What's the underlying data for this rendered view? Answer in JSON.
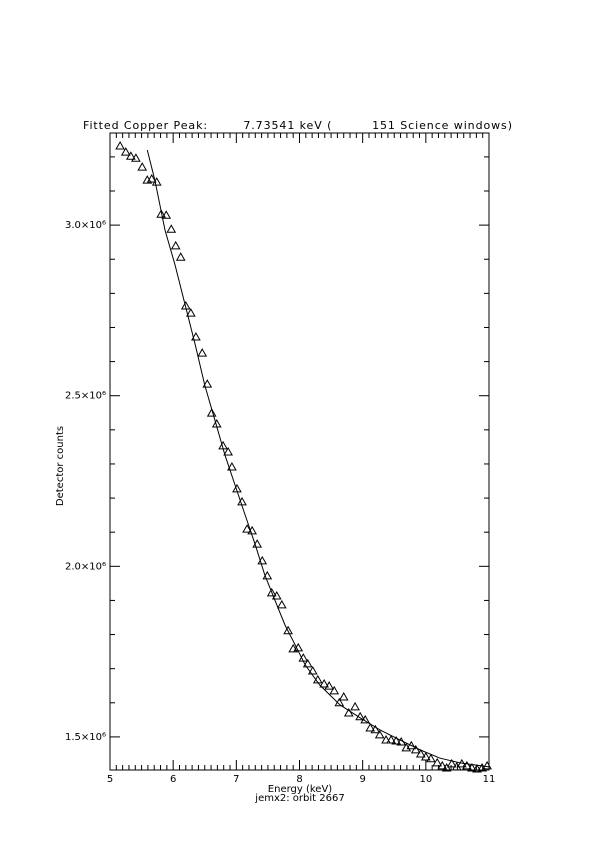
{
  "chart_data": {
    "type": "scatter",
    "title": "Fitted Copper Peak:        7.73541 keV (         151 Science windows)",
    "x_label": "Energy (keV)",
    "subtitle": "jemx2: orbit 2667",
    "y_label": "Detector counts",
    "xlim": [
      5,
      11
    ],
    "xticks": [
      5,
      6,
      7,
      8,
      9,
      10,
      11
    ],
    "ylim": [
      1403000,
      3270000
    ],
    "yticks": [
      {
        "value": 1500000,
        "label": "1.5×10⁶"
      },
      {
        "value": 2000000,
        "label": "2.0×10⁶"
      },
      {
        "value": 2500000,
        "label": "2.5×10⁶"
      },
      {
        "value": 3000000,
        "label": "3.0×10⁶"
      }
    ],
    "x_minor_ticks": 10,
    "y_minor_ticks": 5,
    "series": [
      {
        "marker": "triangle",
        "color": "#000000",
        "x": [
          5.16,
          5.25,
          5.33,
          5.41,
          5.51,
          5.59,
          5.66,
          5.74,
          5.81,
          5.89,
          5.97,
          6.04,
          6.12,
          6.2,
          6.28,
          6.36,
          6.46,
          6.54,
          6.61,
          6.69,
          6.79,
          6.87,
          6.93,
          7.01,
          7.09,
          7.17,
          7.25,
          7.33,
          7.41,
          7.49,
          7.56,
          7.64,
          7.72,
          7.82,
          7.9,
          7.98,
          8.06,
          8.13,
          8.21,
          8.29,
          8.39,
          8.47,
          8.55,
          8.63,
          8.7,
          8.78,
          8.88,
          8.96,
          9.04,
          9.12,
          9.2,
          9.27,
          9.37,
          9.45,
          9.53,
          9.61,
          9.69,
          9.77,
          9.84,
          9.92,
          10.0,
          10.08,
          10.18,
          10.26,
          10.33,
          10.41,
          10.49,
          10.57,
          10.65,
          10.73,
          10.81,
          10.89,
          10.97
        ],
        "values": [
          3232000,
          3214000,
          3202000,
          3196000,
          3170000,
          3132000,
          3135000,
          3126000,
          3032000,
          3029000,
          2988000,
          2939000,
          2906000,
          2763000,
          2742000,
          2672000,
          2625000,
          2534000,
          2449000,
          2417000,
          2353000,
          2335000,
          2291000,
          2227000,
          2189000,
          2109000,
          2104000,
          2065000,
          2016000,
          1972000,
          1922000,
          1913000,
          1887000,
          1811000,
          1758000,
          1761000,
          1731000,
          1714000,
          1693000,
          1667000,
          1655000,
          1649000,
          1635000,
          1600000,
          1617000,
          1570000,
          1588000,
          1559000,
          1550000,
          1526000,
          1521000,
          1506000,
          1491000,
          1491000,
          1488000,
          1485000,
          1468000,
          1474000,
          1462000,
          1450000,
          1441000,
          1436000,
          1424000,
          1415000,
          1409000,
          1421000,
          1412000,
          1421000,
          1415000,
          1409000,
          1406000,
          1409000,
          1415000
        ]
      },
      {
        "marker": "none",
        "color": "#000000",
        "x": [
          5.59,
          5.71,
          5.87,
          6.03,
          6.19,
          6.35,
          6.5,
          6.66,
          6.82,
          6.98,
          7.14,
          7.3,
          7.45,
          7.61,
          7.77,
          7.93,
          8.09,
          8.32,
          8.64,
          8.96,
          9.27,
          9.59,
          9.91,
          10.22,
          10.54,
          11.0
        ],
        "values": [
          3220000,
          3132000,
          2986000,
          2883000,
          2766000,
          2649000,
          2531000,
          2429000,
          2326000,
          2238000,
          2150000,
          2063000,
          1975000,
          1901000,
          1828000,
          1770000,
          1711000,
          1652000,
          1594000,
          1556000,
          1521000,
          1491000,
          1462000,
          1438000,
          1424000,
          1412000
        ]
      }
    ]
  }
}
